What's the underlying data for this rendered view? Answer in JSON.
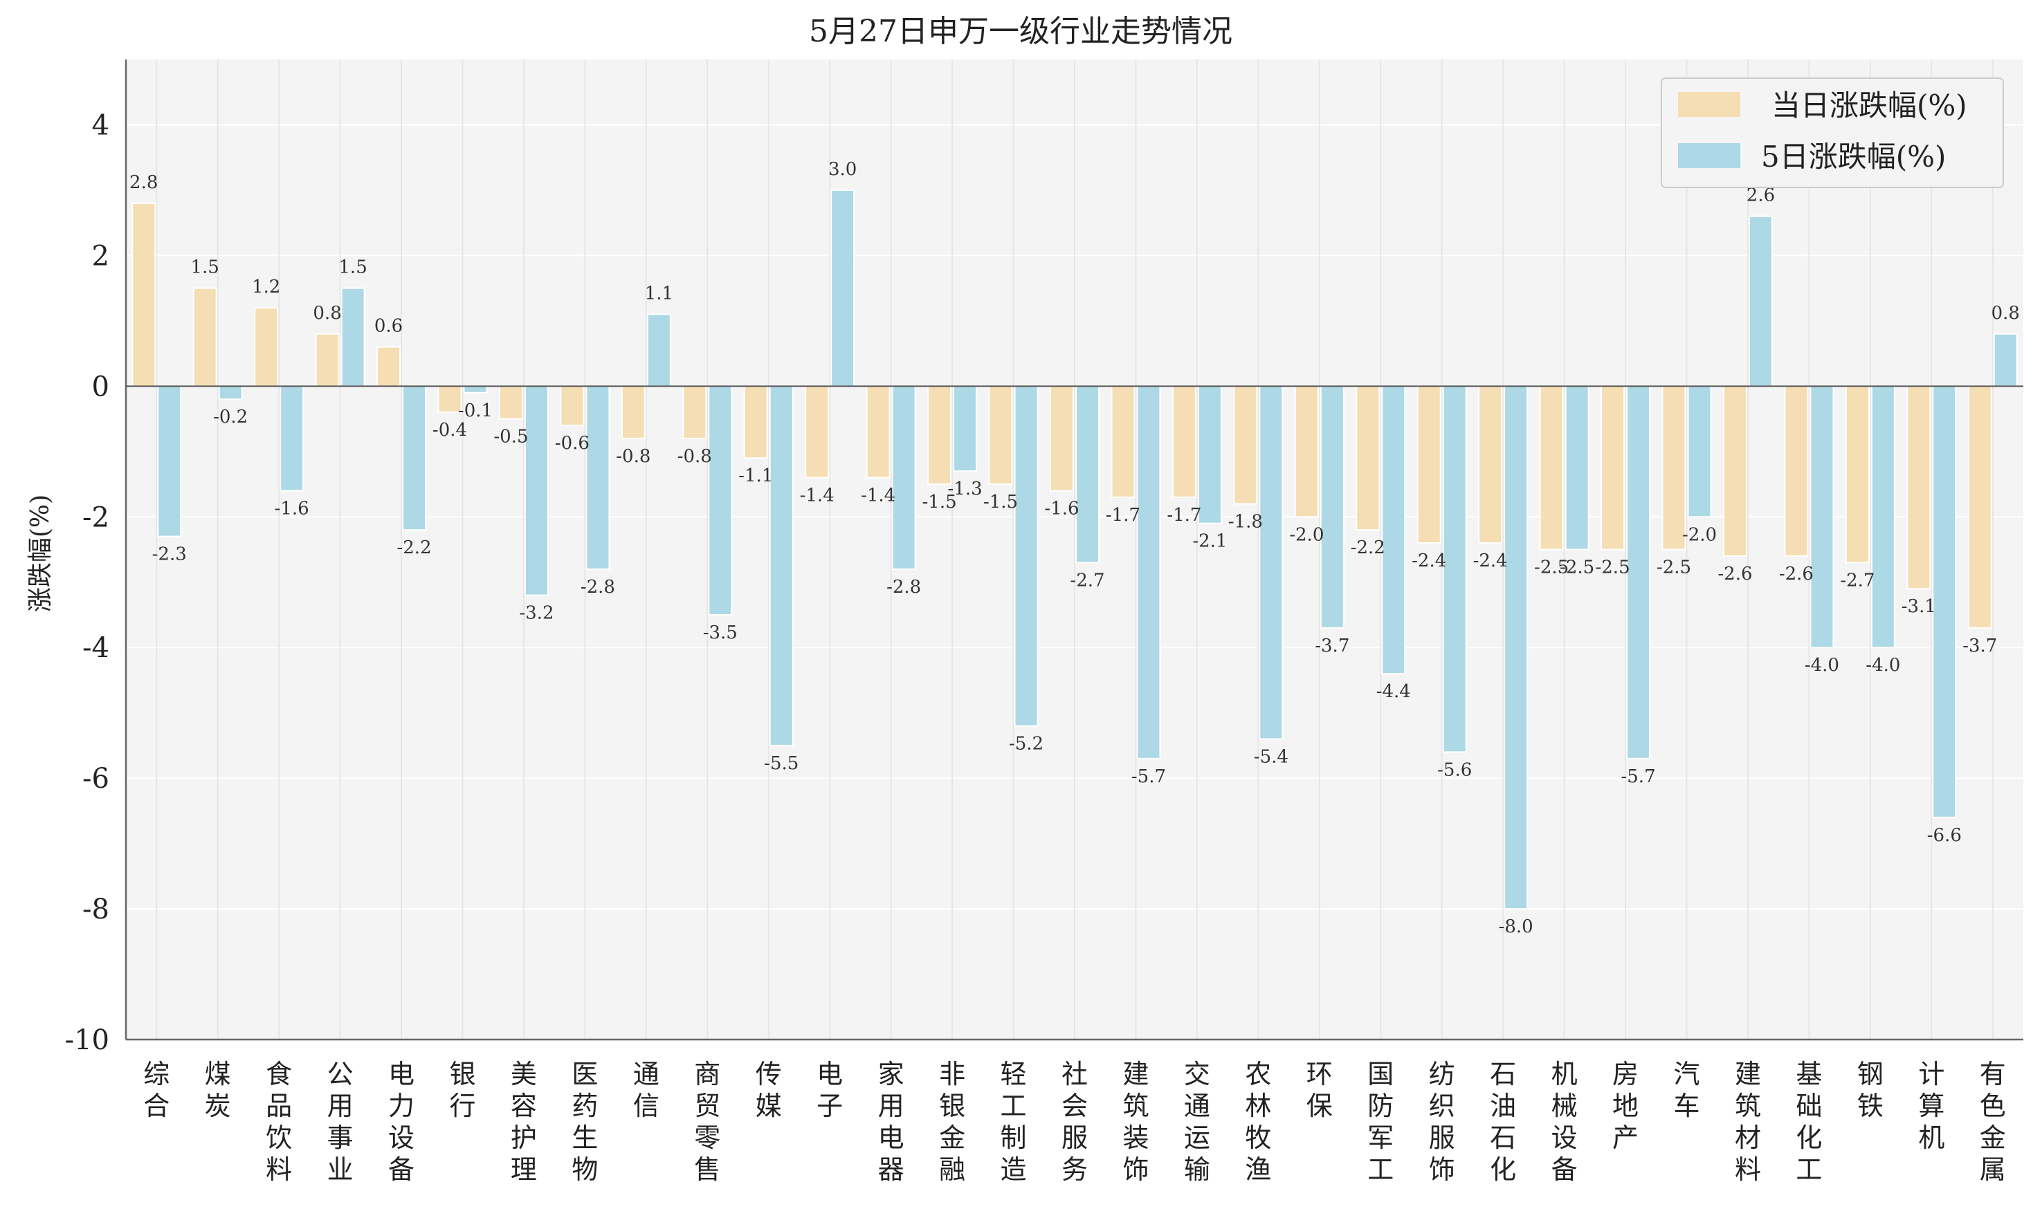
{
  "chart_data": {
    "type": "bar",
    "title": "5月27日申万一级行业走势情况",
    "xlabel": "",
    "ylabel": "涨跌幅(%)",
    "ylim": [
      -10,
      5
    ],
    "yticks": [
      4,
      2,
      0,
      -2,
      -4,
      -6,
      -8,
      -10
    ],
    "grid": true,
    "legend_position": "top-right",
    "categories": [
      "综合",
      "煤炭",
      "食品饮料",
      "公用事业",
      "电力设备",
      "银行",
      "美容护理",
      "医药生物",
      "通信",
      "商贸零售",
      "传媒",
      "电子",
      "家用电器",
      "非银金融",
      "轻工制造",
      "社会服务",
      "建筑装饰",
      "交通运输",
      "农林牧渔",
      "环保",
      "国防军工",
      "纺织服饰",
      "石油石化",
      "机械设备",
      "房地产",
      "汽车",
      "建筑材料",
      "基础化工",
      "钢铁",
      "计算机",
      "有色金属"
    ],
    "series": [
      {
        "name": "当日涨跌幅(%)",
        "color": "#f5deb3",
        "values": [
          2.8,
          1.5,
          1.2,
          0.8,
          0.6,
          -0.4,
          -0.5,
          -0.6,
          -0.8,
          -0.8,
          -1.1,
          -1.4,
          -1.4,
          -1.5,
          -1.5,
          -1.6,
          -1.7,
          -1.7,
          -1.8,
          -2.0,
          -2.2,
          -2.4,
          -2.4,
          -2.5,
          -2.5,
          -2.5,
          -2.6,
          -2.6,
          -2.7,
          -3.1,
          -3.7
        ]
      },
      {
        "name": "5日涨跌幅(%)",
        "color": "#add8e6",
        "values": [
          -2.3,
          -0.2,
          -1.6,
          1.5,
          -2.2,
          -0.1,
          -3.2,
          -2.8,
          1.1,
          -3.5,
          -5.5,
          3.0,
          -2.8,
          -1.3,
          -5.2,
          -2.7,
          -5.7,
          -2.1,
          -5.4,
          -3.7,
          -4.4,
          -5.6,
          -8.0,
          -2.5,
          -5.7,
          -2.0,
          2.6,
          -4.0,
          -4.0,
          -6.6,
          0.8
        ]
      }
    ]
  }
}
